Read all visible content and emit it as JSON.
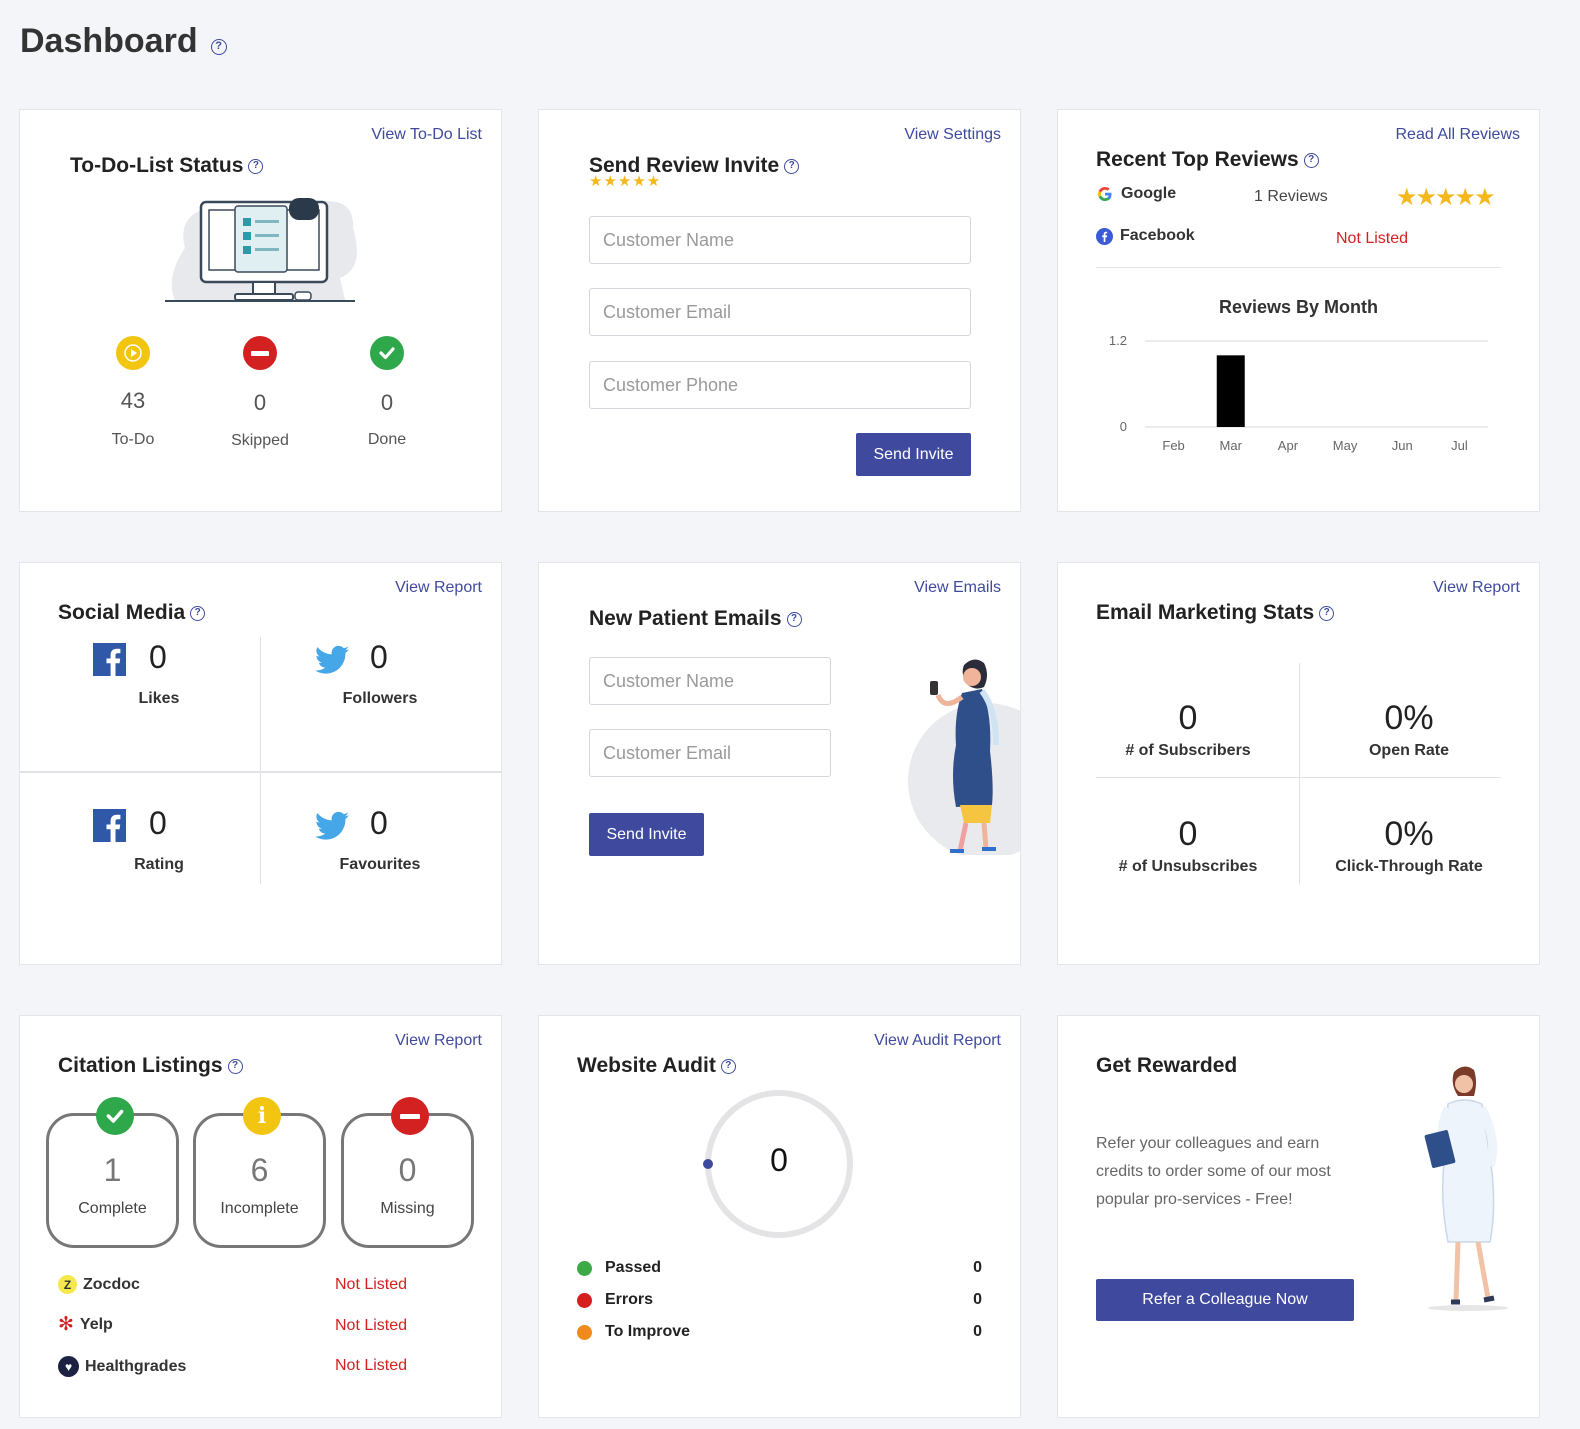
{
  "page": {
    "title": "Dashboard"
  },
  "todo": {
    "title": "To-Do-List Status",
    "link": "View To-Do List",
    "stats": [
      {
        "value": "43",
        "label": "To-Do",
        "icon": "play-icon",
        "color": "#f2c511"
      },
      {
        "value": "0",
        "label": "Skipped",
        "icon": "minus-circle-icon",
        "color": "#d32121"
      },
      {
        "value": "0",
        "label": "Done",
        "icon": "check-circle-icon",
        "color": "#2ea84a"
      }
    ]
  },
  "review_invite": {
    "title": "Send Review Invite",
    "link": "View Settings",
    "name_placeholder": "Customer Name",
    "email_placeholder": "Customer Email",
    "phone_placeholder": "Customer Phone",
    "button": "Send Invite"
  },
  "top_reviews": {
    "title": "Recent Top Reviews",
    "link": "Read All Reviews",
    "google": {
      "name": "Google",
      "count": "1 Reviews"
    },
    "facebook": {
      "name": "Facebook",
      "status": "Not Listed"
    },
    "chart_title": "Reviews By Month"
  },
  "chart_data": {
    "type": "bar",
    "title": "Reviews By Month",
    "categories": [
      "Feb",
      "Mar",
      "Apr",
      "May",
      "Jun",
      "Jul"
    ],
    "values": [
      0,
      1,
      0,
      0,
      0,
      0
    ],
    "ylim": [
      0,
      1.2
    ],
    "yticks": [
      "0",
      "1.2"
    ],
    "grid": true,
    "bar_color": "#000000"
  },
  "social": {
    "title": "Social Media",
    "link": "View Report",
    "cells": [
      {
        "network": "facebook",
        "value": "0",
        "label": "Likes"
      },
      {
        "network": "twitter",
        "value": "0",
        "label": "Followers"
      },
      {
        "network": "facebook",
        "value": "0",
        "label": "Rating"
      },
      {
        "network": "twitter",
        "value": "0",
        "label": "Favourites"
      }
    ]
  },
  "patient_emails": {
    "title": "New Patient Emails",
    "link": "View Emails",
    "name_placeholder": "Customer Name",
    "email_placeholder": "Customer Email",
    "button": "Send Invite"
  },
  "email_stats": {
    "title": "Email Marketing Stats",
    "link": "View Report",
    "cells": [
      {
        "value": "0",
        "label": "# of Subscribers"
      },
      {
        "value": "0%",
        "label": "Open Rate"
      },
      {
        "value": "0",
        "label": "# of Unsubscribes"
      },
      {
        "value": "0%",
        "label": "Click-Through Rate"
      }
    ]
  },
  "citations": {
    "title": "Citation Listings",
    "link": "View Report",
    "boxes": [
      {
        "value": "1",
        "label": "Complete",
        "icon": "check-circle-icon",
        "color": "#2ea84a"
      },
      {
        "value": "6",
        "label": "Incomplete",
        "icon": "info-circle-icon",
        "color": "#f2c511"
      },
      {
        "value": "0",
        "label": "Missing",
        "icon": "minus-circle-icon",
        "color": "#d32121"
      }
    ],
    "listings": [
      {
        "name": "Zocdoc",
        "status": "Not Listed"
      },
      {
        "name": "Yelp",
        "status": "Not Listed"
      },
      {
        "name": "Healthgrades",
        "status": "Not Listed"
      }
    ]
  },
  "audit": {
    "title": "Website Audit",
    "link": "View Audit Report",
    "score": "0",
    "rows": [
      {
        "label": "Passed",
        "value": "0",
        "color": "#3daa47"
      },
      {
        "label": "Errors",
        "value": "0",
        "color": "#d62020"
      },
      {
        "label": "To Improve",
        "value": "0",
        "color": "#f08a1c"
      }
    ]
  },
  "rewarded": {
    "title": "Get Rewarded",
    "line1": "Refer your colleagues and earn",
    "line2": "credits to order some of our most",
    "line3": "popular pro-services - Free!",
    "button": "Refer a Colleague Now"
  }
}
